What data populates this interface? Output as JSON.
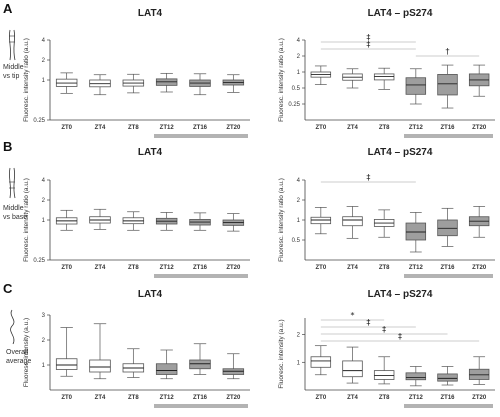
{
  "rows": [
    {
      "panel_letter": "A",
      "side_label_lines": [
        "Middle",
        "vs tip"
      ],
      "night_bar_color": "#b3b3b3"
    },
    {
      "panel_letter": "B",
      "side_label_lines": [
        "Middle",
        "vs base"
      ],
      "night_bar_color": "#b3b3b3"
    },
    {
      "panel_letter": "C",
      "side_label_lines": [
        "Overall",
        "average"
      ],
      "night_bar_color": "#b3b3b3"
    }
  ],
  "colors": {
    "day_box": "#ffffff",
    "night_box": "#9e9e9e",
    "stroke": "#555555",
    "night_bar": "#b3b3b3"
  },
  "chart_data": [
    {
      "type": "box",
      "panel": "A-left",
      "title": "LAT4",
      "ylabel": "Fluoresc. intensity ratio (a.u.)",
      "scale": "log2",
      "ylim": [
        0.25,
        4
      ],
      "yticks": [
        "0.25",
        "1",
        "2",
        "4"
      ],
      "categories": [
        "ZT0",
        "ZT4",
        "ZT8",
        "ZT12",
        "ZT16",
        "ZT20"
      ],
      "boxes": [
        {
          "min": 0.63,
          "q1": 0.8,
          "median": 0.9,
          "q3": 1.03,
          "max": 1.28
        },
        {
          "min": 0.6,
          "q1": 0.79,
          "median": 0.88,
          "q3": 1.0,
          "max": 1.2
        },
        {
          "min": 0.64,
          "q1": 0.81,
          "median": 0.9,
          "q3": 1.0,
          "max": 1.22
        },
        {
          "min": 0.66,
          "q1": 0.83,
          "median": 0.94,
          "q3": 1.04,
          "max": 1.26
        },
        {
          "min": 0.6,
          "q1": 0.8,
          "median": 0.9,
          "q3": 1.0,
          "max": 1.24
        },
        {
          "min": 0.65,
          "q1": 0.84,
          "median": 0.92,
          "q3": 1.0,
          "max": 1.2
        }
      ],
      "significance": []
    },
    {
      "type": "box",
      "panel": "A-right",
      "title": "LAT4 – pS274",
      "ylabel": "Fluoresc. intensity ratio (a.u.)",
      "scale": "log2",
      "ylim": [
        0.125,
        4
      ],
      "yticks": [
        "0.25",
        "0.5",
        "1",
        "2",
        "4"
      ],
      "categories": [
        "ZT0",
        "ZT4",
        "ZT8",
        "ZT12",
        "ZT16",
        "ZT20"
      ],
      "boxes": [
        {
          "min": 0.58,
          "q1": 0.8,
          "median": 0.9,
          "q3": 1.0,
          "max": 1.3
        },
        {
          "min": 0.5,
          "q1": 0.7,
          "median": 0.8,
          "q3": 0.92,
          "max": 1.15
        },
        {
          "min": 0.47,
          "q1": 0.71,
          "median": 0.82,
          "q3": 0.92,
          "max": 1.18
        },
        {
          "min": 0.25,
          "q1": 0.38,
          "median": 0.57,
          "q3": 0.78,
          "max": 1.15
        },
        {
          "min": 0.21,
          "q1": 0.37,
          "median": 0.6,
          "q3": 0.9,
          "max": 1.35
        },
        {
          "min": 0.35,
          "q1": 0.55,
          "median": 0.71,
          "q3": 0.92,
          "max": 1.35
        }
      ],
      "significance": [
        {
          "symbol": "‡",
          "from": "ZT0",
          "to": "ZT12"
        },
        {
          "symbol": "‡",
          "from": "ZT0",
          "to": "ZT12"
        },
        {
          "symbol": "†",
          "from": "ZT12",
          "to": "ZT20"
        }
      ]
    },
    {
      "type": "box",
      "panel": "B-left",
      "title": "LAT4",
      "ylabel": "Fluoresc. intensity ratio (a.u.)",
      "scale": "log2",
      "ylim": [
        0.25,
        4
      ],
      "yticks": [
        "0.25",
        "1",
        "2",
        "4"
      ],
      "categories": [
        "ZT0",
        "ZT4",
        "ZT8",
        "ZT12",
        "ZT16",
        "ZT20"
      ],
      "boxes": [
        {
          "min": 0.7,
          "q1": 0.87,
          "median": 0.97,
          "q3": 1.08,
          "max": 1.4
        },
        {
          "min": 0.72,
          "q1": 0.9,
          "median": 1.0,
          "q3": 1.12,
          "max": 1.45
        },
        {
          "min": 0.7,
          "q1": 0.88,
          "median": 0.97,
          "q3": 1.08,
          "max": 1.33
        },
        {
          "min": 0.7,
          "q1": 0.87,
          "median": 0.96,
          "q3": 1.06,
          "max": 1.3
        },
        {
          "min": 0.7,
          "q1": 0.84,
          "median": 0.93,
          "q3": 1.02,
          "max": 1.28
        },
        {
          "min": 0.68,
          "q1": 0.83,
          "median": 0.92,
          "q3": 1.0,
          "max": 1.25
        }
      ],
      "significance": []
    },
    {
      "type": "box",
      "panel": "B-right",
      "title": "LAT4 – pS274",
      "ylabel": "Fluoresc. intensity ratio (a.u.)",
      "scale": "log2",
      "ylim": [
        0.25,
        4
      ],
      "yticks": [
        "0.5",
        "1",
        "2",
        "4"
      ],
      "categories": [
        "ZT0",
        "ZT4",
        "ZT8",
        "ZT12",
        "ZT16",
        "ZT20"
      ],
      "boxes": [
        {
          "min": 0.62,
          "q1": 0.88,
          "median": 1.0,
          "q3": 1.1,
          "max": 1.55
        },
        {
          "min": 0.53,
          "q1": 0.82,
          "median": 1.0,
          "q3": 1.12,
          "max": 1.6
        },
        {
          "min": 0.55,
          "q1": 0.8,
          "median": 0.9,
          "q3": 1.02,
          "max": 1.42
        },
        {
          "min": 0.33,
          "q1": 0.5,
          "median": 0.66,
          "q3": 0.9,
          "max": 1.3
        },
        {
          "min": 0.4,
          "q1": 0.58,
          "median": 0.75,
          "q3": 1.0,
          "max": 1.5
        },
        {
          "min": 0.55,
          "q1": 0.82,
          "median": 0.96,
          "q3": 1.12,
          "max": 1.6
        }
      ],
      "significance": [
        {
          "symbol": "‡",
          "from": "ZT0",
          "to": "ZT12"
        }
      ]
    },
    {
      "type": "box",
      "panel": "C-left",
      "title": "LAT4",
      "ylabel": "Fluoresc. intensity (a.u.)",
      "scale": "linear",
      "ylim": [
        0,
        3
      ],
      "yticks": [
        "1",
        "2",
        "3"
      ],
      "categories": [
        "ZT0",
        "ZT4",
        "ZT8",
        "ZT12",
        "ZT16",
        "ZT20"
      ],
      "boxes": [
        {
          "min": 0.55,
          "q1": 0.82,
          "median": 1.0,
          "q3": 1.25,
          "max": 2.5
        },
        {
          "min": 0.45,
          "q1": 0.72,
          "median": 0.92,
          "q3": 1.2,
          "max": 2.65
        },
        {
          "min": 0.5,
          "q1": 0.72,
          "median": 0.88,
          "q3": 1.05,
          "max": 1.65
        },
        {
          "min": 0.45,
          "q1": 0.62,
          "median": 0.78,
          "q3": 1.05,
          "max": 1.6
        },
        {
          "min": 0.62,
          "q1": 0.85,
          "median": 1.05,
          "q3": 1.2,
          "max": 1.85
        },
        {
          "min": 0.45,
          "q1": 0.62,
          "median": 0.75,
          "q3": 0.85,
          "max": 1.45
        }
      ],
      "significance": []
    },
    {
      "type": "box",
      "panel": "C-right",
      "title": "LAT4 – pS274",
      "ylabel": "Fluoresc. intensity (a.u.)",
      "scale": "linear",
      "ylim": [
        0,
        2.6
      ],
      "yticks": [
        "1",
        "2"
      ],
      "categories": [
        "ZT0",
        "ZT4",
        "ZT8",
        "ZT12",
        "ZT16",
        "ZT20"
      ],
      "boxes": [
        {
          "min": 0.55,
          "q1": 0.82,
          "median": 1.05,
          "q3": 1.2,
          "max": 1.6
        },
        {
          "min": 0.25,
          "q1": 0.48,
          "median": 0.7,
          "q3": 1.05,
          "max": 1.55
        },
        {
          "min": 0.22,
          "q1": 0.38,
          "median": 0.52,
          "q3": 0.7,
          "max": 1.2
        },
        {
          "min": 0.15,
          "q1": 0.37,
          "median": 0.45,
          "q3": 0.62,
          "max": 0.85
        },
        {
          "min": 0.18,
          "q1": 0.32,
          "median": 0.42,
          "q3": 0.58,
          "max": 0.85
        },
        {
          "min": 0.2,
          "q1": 0.38,
          "median": 0.55,
          "q3": 0.75,
          "max": 1.2
        }
      ],
      "significance": [
        {
          "symbol": "*",
          "from": "ZT0",
          "to": "ZT8"
        },
        {
          "symbol": "‡",
          "from": "ZT0",
          "to": "ZT12"
        },
        {
          "symbol": "‡",
          "from": "ZT0",
          "to": "ZT16"
        },
        {
          "symbol": "‡",
          "from": "ZT0",
          "to": "ZT20"
        }
      ]
    }
  ]
}
